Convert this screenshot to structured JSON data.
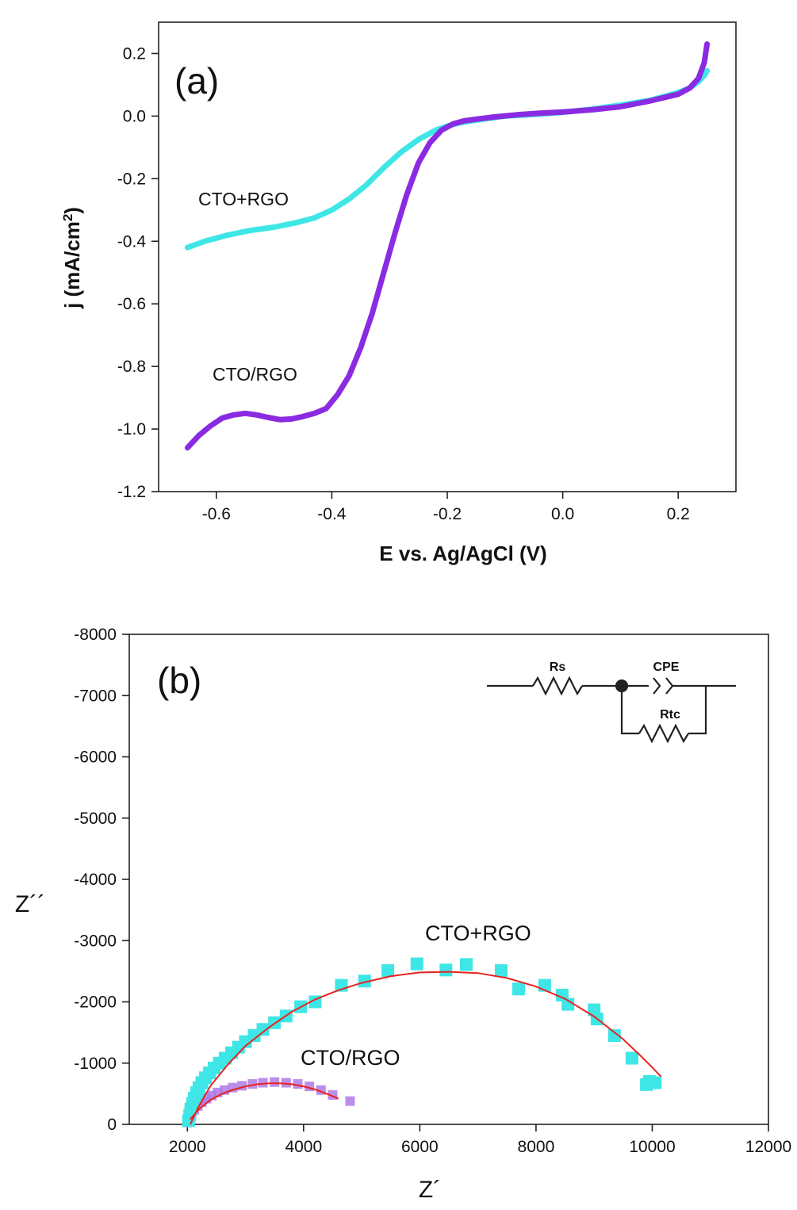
{
  "panel_a": {
    "label": "(a)",
    "xlabel": "E vs. Ag/AgCl (V)",
    "ylabel_main": "j (mA/cm",
    "ylabel_sup": "2",
    "ylabel_end": ")",
    "annotations": [
      "CTO+RGO",
      "CTO/RGO"
    ]
  },
  "panel_b": {
    "label": "(b)",
    "xlabel": "Z´",
    "ylabel": "Z´´",
    "annotations": [
      "CTO+RGO",
      "CTO/RGO"
    ],
    "circuit": {
      "rs": "Rs",
      "cpe": "CPE",
      "rtc": "Rtc"
    }
  },
  "colors": {
    "cto_plus_rgo": "#3fe6e6",
    "cto_slash_rgo": "#8a2be2",
    "cto_slash_rgo_markers": "#b07ae8",
    "fit_line": "#e8231f",
    "axis": "#222222"
  },
  "chart_data": [
    {
      "type": "line",
      "xlim": [
        -0.7,
        0.3
      ],
      "ylim": [
        -1.2,
        0.3
      ],
      "xticks": [
        -0.6,
        -0.4,
        -0.2,
        0.0,
        0.2
      ],
      "xtick_labels": [
        "-0.6",
        "-0.4",
        "-0.2",
        "0.0",
        "0.2"
      ],
      "yticks": [
        -1.2,
        -1.0,
        -0.8,
        -0.6,
        -0.4,
        -0.2,
        0.0,
        0.2
      ],
      "ytick_labels": [
        "-1.2",
        "-1.0",
        "-0.8",
        "-0.6",
        "-0.4",
        "-0.2",
        "0.0",
        "0.2"
      ],
      "series": [
        {
          "name": "CTO+RGO",
          "x": [
            -0.65,
            -0.62,
            -0.58,
            -0.54,
            -0.5,
            -0.46,
            -0.43,
            -0.4,
            -0.37,
            -0.34,
            -0.31,
            -0.28,
            -0.25,
            -0.22,
            -0.2,
            -0.18,
            -0.15,
            -0.1,
            -0.05,
            0.0,
            0.05,
            0.1,
            0.15,
            0.2,
            0.22,
            0.235,
            0.245,
            0.25
          ],
          "y": [
            -0.42,
            -0.4,
            -0.38,
            -0.365,
            -0.355,
            -0.34,
            -0.325,
            -0.3,
            -0.265,
            -0.22,
            -0.165,
            -0.115,
            -0.075,
            -0.045,
            -0.032,
            -0.022,
            -0.013,
            0.0,
            0.005,
            0.012,
            0.022,
            0.035,
            0.05,
            0.075,
            0.09,
            0.11,
            0.13,
            0.145
          ]
        },
        {
          "name": "CTO/RGO",
          "x": [
            -0.65,
            -0.63,
            -0.61,
            -0.59,
            -0.57,
            -0.55,
            -0.53,
            -0.51,
            -0.49,
            -0.47,
            -0.45,
            -0.43,
            -0.41,
            -0.39,
            -0.37,
            -0.35,
            -0.33,
            -0.31,
            -0.29,
            -0.27,
            -0.25,
            -0.23,
            -0.21,
            -0.19,
            -0.17,
            -0.15,
            -0.12,
            -0.08,
            -0.04,
            0.0,
            0.05,
            0.1,
            0.15,
            0.2,
            0.22,
            0.235,
            0.245,
            0.25
          ],
          "y": [
            -1.06,
            -1.02,
            -0.99,
            -0.965,
            -0.955,
            -0.95,
            -0.955,
            -0.963,
            -0.97,
            -0.968,
            -0.96,
            -0.95,
            -0.935,
            -0.89,
            -0.83,
            -0.74,
            -0.63,
            -0.5,
            -0.37,
            -0.25,
            -0.15,
            -0.085,
            -0.045,
            -0.025,
            -0.015,
            -0.01,
            -0.003,
            0.004,
            0.009,
            0.013,
            0.02,
            0.03,
            0.048,
            0.07,
            0.09,
            0.12,
            0.17,
            0.23
          ]
        }
      ]
    },
    {
      "type": "scatter",
      "xlim": [
        1000,
        12000
      ],
      "ylim": [
        0,
        -8000
      ],
      "xticks": [
        2000,
        4000,
        6000,
        8000,
        10000,
        12000
      ],
      "xtick_labels": [
        "2000",
        "4000",
        "6000",
        "8000",
        "10000",
        "12000"
      ],
      "yticks": [
        0,
        -1000,
        -2000,
        -3000,
        -4000,
        -5000,
        -6000,
        -7000,
        -8000
      ],
      "ytick_labels": [
        "0",
        "-1000",
        "-2000",
        "-3000",
        "-4000",
        "-5000",
        "-6000",
        "-7000",
        "-8000"
      ],
      "series": [
        {
          "name": "CTO+RGO",
          "x": [
            2020,
            2040,
            2060,
            2090,
            2120,
            2160,
            2200,
            2250,
            2310,
            2380,
            2460,
            2550,
            2650,
            2760,
            2880,
            3000,
            3150,
            3300,
            3500,
            3700,
            3950,
            4200,
            4650,
            5050,
            5450,
            5950,
            6450,
            6800,
            7400,
            7700,
            8150,
            8450,
            8550,
            9000,
            9050,
            9350,
            9650,
            9900,
            9950,
            10050
          ],
          "y": [
            -60,
            -150,
            -250,
            -340,
            -430,
            -520,
            -600,
            -680,
            -760,
            -840,
            -920,
            -1000,
            -1080,
            -1170,
            -1260,
            -1350,
            -1450,
            -1550,
            -1660,
            -1770,
            -1920,
            -2000,
            -2270,
            -2340,
            -2510,
            -2620,
            -2520,
            -2610,
            -2510,
            -2210,
            -2270,
            -2110,
            -1960,
            -1870,
            -1720,
            -1450,
            -1080,
            -650,
            -700,
            -680
          ]
        },
        {
          "name": "CTO/RGO",
          "x": [
            2000,
            2030,
            2070,
            2120,
            2180,
            2250,
            2330,
            2420,
            2520,
            2640,
            2780,
            2940,
            3120,
            3300,
            3500,
            3700,
            3900,
            4100,
            4300,
            4500,
            4800
          ],
          "y": [
            -30,
            -100,
            -170,
            -240,
            -300,
            -360,
            -420,
            -470,
            -520,
            -560,
            -600,
            -630,
            -660,
            -680,
            -690,
            -680,
            -660,
            -620,
            -560,
            -480,
            -380
          ]
        },
        {
          "name": "CTO+RGO fit",
          "x": [
            2050,
            2200,
            2400,
            2700,
            3000,
            3400,
            3800,
            4200,
            4600,
            5000,
            5500,
            6000,
            6500,
            7000,
            7500,
            8000,
            8500,
            9000,
            9500,
            9800,
            10000,
            10150
          ],
          "y": [
            0,
            -300,
            -630,
            -980,
            -1280,
            -1580,
            -1840,
            -2040,
            -2190,
            -2310,
            -2420,
            -2480,
            -2490,
            -2470,
            -2390,
            -2250,
            -2050,
            -1760,
            -1390,
            -1120,
            -930,
            -780
          ]
        },
        {
          "name": "CTO/RGO fit",
          "x": [
            2050,
            2200,
            2400,
            2600,
            2800,
            3000,
            3200,
            3400,
            3600,
            3800,
            4000,
            4200,
            4400,
            4600
          ],
          "y": [
            -80,
            -250,
            -400,
            -500,
            -570,
            -620,
            -655,
            -670,
            -670,
            -655,
            -620,
            -570,
            -500,
            -420
          ]
        }
      ]
    }
  ]
}
